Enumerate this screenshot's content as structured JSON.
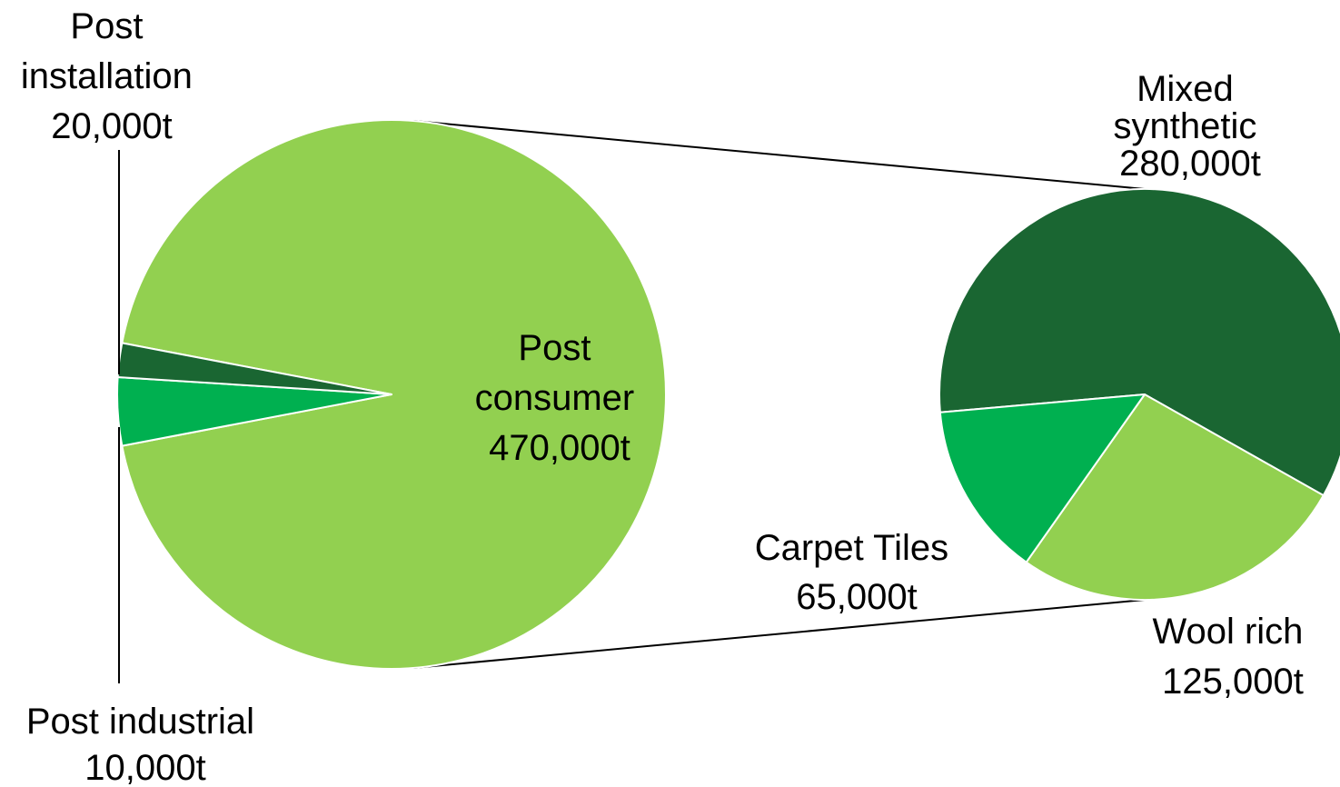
{
  "chart_data": {
    "type": "pie",
    "subtype": "pie-of-pie",
    "main_pie": {
      "slices": [
        {
          "label": "Post consumer 470,000t",
          "lines": [
            "Post",
            "consumer",
            "470,000t"
          ],
          "value": 470000,
          "color": "#92d050"
        },
        {
          "label": "Post installation 20,000t",
          "lines": [
            "Post",
            "installation",
            "20,000t"
          ],
          "value": 20000,
          "color": "#00b050"
        },
        {
          "label": "Post industrial 10,000t",
          "lines": [
            "Post industrial",
            "10,000t"
          ],
          "value": 10000,
          "color": "#1a6632"
        }
      ]
    },
    "secondary_pie": {
      "breakdown_of": "Post consumer",
      "slices": [
        {
          "label": "Mixed synthetic 280,000t",
          "lines": [
            "Mixed",
            "synthetic",
            "280,000t"
          ],
          "value": 280000,
          "color": "#1a6632"
        },
        {
          "label": "Wool rich 125,000t",
          "lines": [
            "Wool rich",
            "125,000t"
          ],
          "value": 125000,
          "color": "#92d050"
        },
        {
          "label": "Carpet Tiles 65,000t",
          "lines": [
            "Carpet Tiles",
            "65,000t"
          ],
          "value": 65000,
          "color": "#00b050"
        }
      ]
    }
  }
}
